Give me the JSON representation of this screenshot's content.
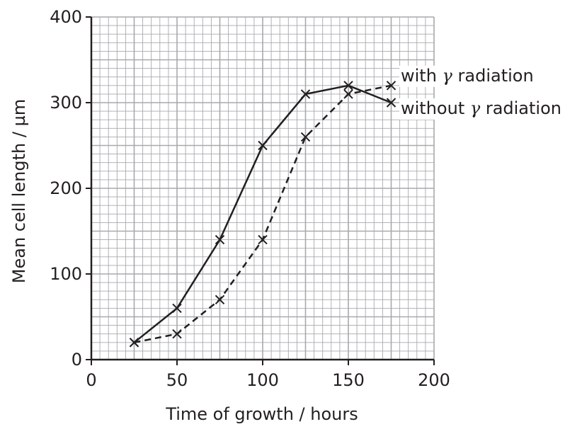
{
  "chart_data": {
    "type": "line",
    "xlabel": "Time of growth / hours",
    "ylabel": "Mean cell length / µm",
    "xlim": [
      0,
      200
    ],
    "ylim": [
      0,
      400
    ],
    "x_ticks": [
      "0",
      "50",
      "100",
      "150",
      "200"
    ],
    "y_ticks": [
      "0",
      "100",
      "200",
      "300",
      "400"
    ],
    "grid": true,
    "series": [
      {
        "name": "without γ radiation",
        "label_prefix": "without ",
        "label_symbol": "γ",
        "label_suffix": " radiation",
        "style": "solid",
        "marker": "x",
        "x": [
          25,
          50,
          75,
          100,
          125,
          150,
          175
        ],
        "values": [
          20,
          60,
          140,
          250,
          310,
          320,
          300
        ]
      },
      {
        "name": "with γ radiation",
        "label_prefix": "with ",
        "label_symbol": "γ",
        "label_suffix": " radiation",
        "style": "dashed",
        "marker": "x",
        "x": [
          25,
          50,
          75,
          100,
          125,
          150,
          175
        ],
        "values": [
          20,
          30,
          70,
          140,
          260,
          310,
          320
        ]
      }
    ],
    "colors": {
      "line": "#231f20",
      "grid": "#a7a9ac",
      "background": "#ffffff"
    }
  }
}
